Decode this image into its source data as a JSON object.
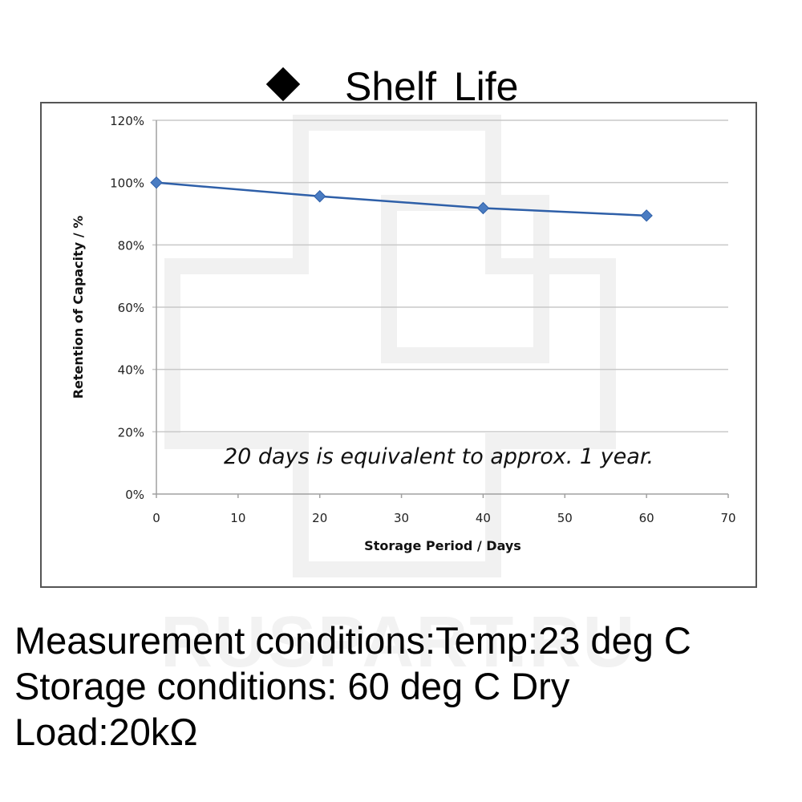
{
  "header": {
    "bullet_icon": "black-diamond-icon",
    "title": "Shelf  Life"
  },
  "watermark": "RUSPART.RU",
  "chart_data": {
    "type": "line",
    "title": "Shelf Life",
    "xlabel": "Storage Period / Days",
    "ylabel": "Retention of Capacity / %",
    "xlim": [
      0,
      70
    ],
    "ylim": [
      0,
      120
    ],
    "x_ticks": [
      0,
      10,
      20,
      30,
      40,
      50,
      60,
      70
    ],
    "y_ticks": [
      0,
      20,
      40,
      60,
      80,
      100,
      120
    ],
    "y_tick_labels": [
      "0%",
      "20%",
      "40%",
      "60%",
      "80%",
      "100%",
      "120%"
    ],
    "grid": "horizontal",
    "legend": "none",
    "series": [
      {
        "name": "Retention of Capacity",
        "color": "#2E5FA8",
        "marker": "diamond",
        "x": [
          0,
          20,
          40,
          60
        ],
        "y": [
          100,
          95.6,
          91.8,
          89.4
        ]
      }
    ],
    "annotations": [
      {
        "text": "20 days is equivalent to approx. 1 year.",
        "x": 33,
        "y": 13
      }
    ]
  },
  "conditions": {
    "line1": "Measurement conditions:Temp:23 deg C",
    "line2": "Storage conditions: 60 deg C Dry",
    "line3": "Load:20kΩ"
  }
}
